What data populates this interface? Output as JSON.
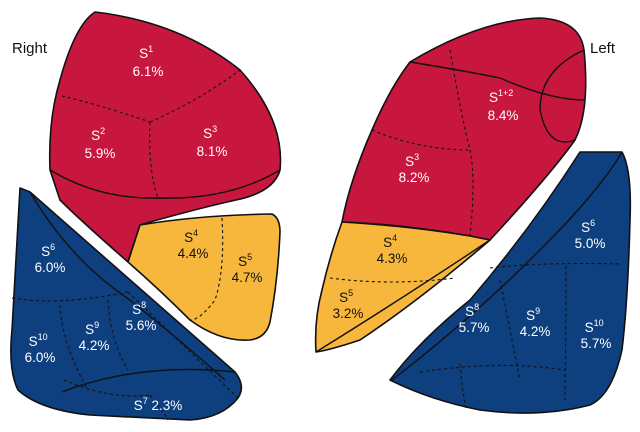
{
  "labels": {
    "right": "Right",
    "left": "Left"
  },
  "colors": {
    "upper": "#C8173E",
    "middle": "#F7B73C",
    "lower": "#0E3F7F"
  },
  "segments": {
    "right_s1": {
      "name": "S",
      "sup": "1",
      "value": "6.1%"
    },
    "right_s2": {
      "name": "S",
      "sup": "2",
      "value": "5.9%"
    },
    "right_s3": {
      "name": "S",
      "sup": "3",
      "value": "8.1%"
    },
    "right_s4": {
      "name": "S",
      "sup": "4",
      "value": "4.4%"
    },
    "right_s5": {
      "name": "S",
      "sup": "5",
      "value": "4.7%"
    },
    "right_s6": {
      "name": "S",
      "sup": "6",
      "value": "6.0%"
    },
    "right_s8": {
      "name": "S",
      "sup": "8",
      "value": "5.6%"
    },
    "right_s9": {
      "name": "S",
      "sup": "9",
      "value": "4.2%"
    },
    "right_s10": {
      "name": "S",
      "sup": "10",
      "value": "6.0%"
    },
    "right_s7": {
      "name": "S",
      "sup": "7",
      "value": "2.3%"
    },
    "left_s12": {
      "name": "S",
      "sup": "1+2",
      "value": "8.4%"
    },
    "left_s3": {
      "name": "S",
      "sup": "3",
      "value": "8.2%"
    },
    "left_s4": {
      "name": "S",
      "sup": "4",
      "value": "4.3%"
    },
    "left_s5": {
      "name": "S",
      "sup": "5",
      "value": "3.2%"
    },
    "left_s6": {
      "name": "S",
      "sup": "6",
      "value": "5.0%"
    },
    "left_s8": {
      "name": "S",
      "sup": "8",
      "value": "5.7%"
    },
    "left_s9": {
      "name": "S",
      "sup": "9",
      "value": "4.2%"
    },
    "left_s10": {
      "name": "S",
      "sup": "10",
      "value": "5.7%"
    }
  }
}
